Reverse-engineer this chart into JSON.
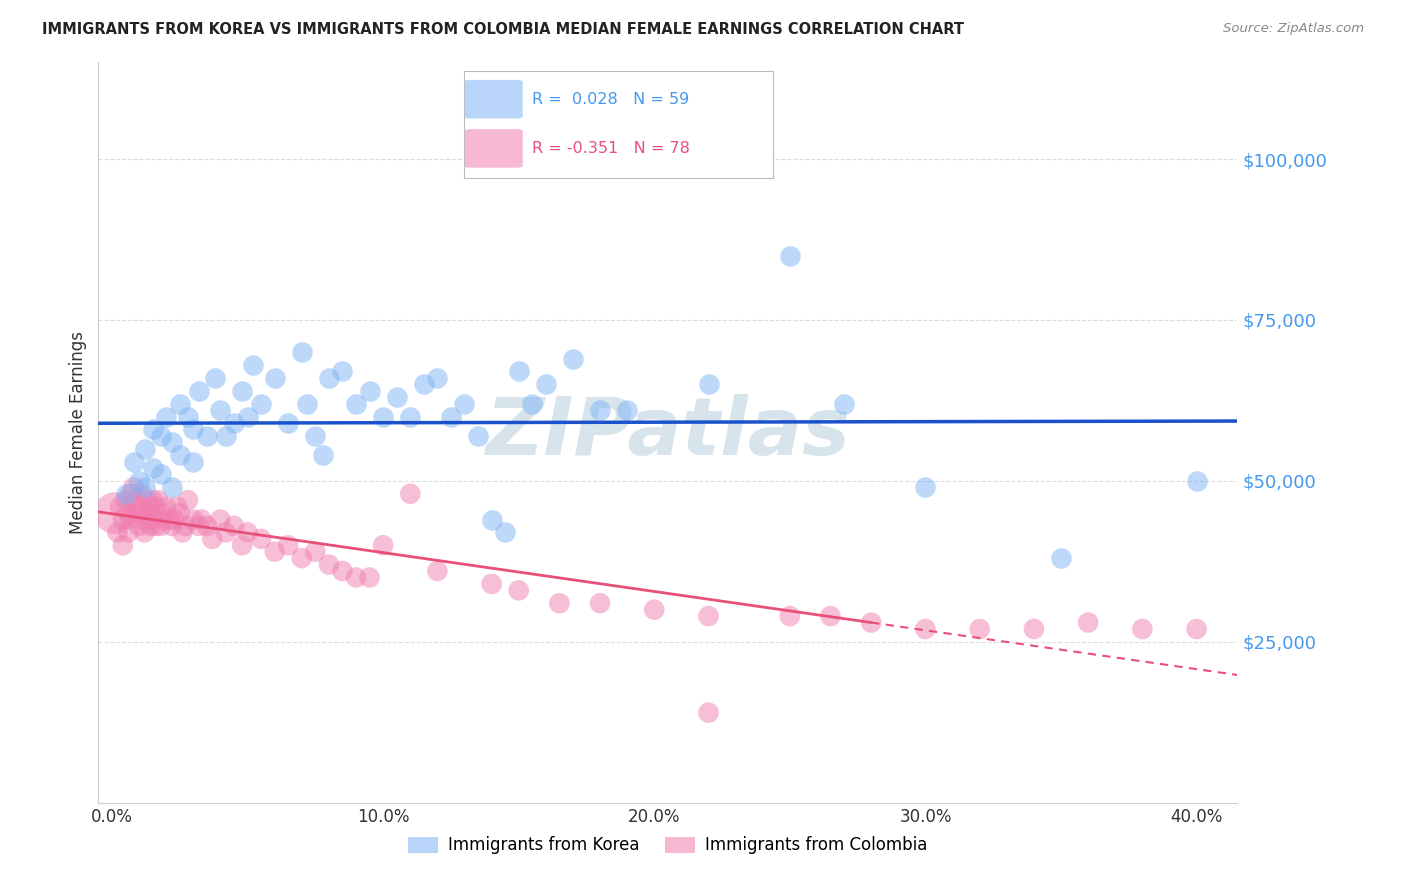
{
  "title": "IMMIGRANTS FROM KOREA VS IMMIGRANTS FROM COLOMBIA MEDIAN FEMALE EARNINGS CORRELATION CHART",
  "source": "Source: ZipAtlas.com",
  "ylabel": "Median Female Earnings",
  "xlabel_ticks": [
    "0.0%",
    "10.0%",
    "20.0%",
    "30.0%",
    "40.0%"
  ],
  "xlabel_vals": [
    0.0,
    0.1,
    0.2,
    0.3,
    0.4
  ],
  "ytick_labels": [
    "$25,000",
    "$50,000",
    "$75,000",
    "$100,000"
  ],
  "ytick_vals": [
    25000,
    50000,
    75000,
    100000
  ],
  "ylim": [
    0,
    115000
  ],
  "xlim": [
    -0.005,
    0.415
  ],
  "korea_color": "#7EB3F5",
  "colombia_color": "#F07EB0",
  "korea_R": 0.028,
  "korea_N": 59,
  "colombia_R": -0.351,
  "colombia_N": 78,
  "korea_line_color": "#1A52CC",
  "colombia_line_color": "#E8507A",
  "watermark": "ZIPatlas",
  "watermark_color": "#B8CEDE",
  "legend_label_korea": "Immigrants from Korea",
  "legend_label_colombia": "Immigrants from Colombia",
  "korea_scatter_x": [
    0.005,
    0.008,
    0.01,
    0.012,
    0.012,
    0.015,
    0.015,
    0.018,
    0.018,
    0.02,
    0.022,
    0.022,
    0.025,
    0.025,
    0.028,
    0.03,
    0.03,
    0.032,
    0.035,
    0.038,
    0.04,
    0.042,
    0.045,
    0.048,
    0.05,
    0.052,
    0.055,
    0.06,
    0.065,
    0.07,
    0.072,
    0.075,
    0.078,
    0.08,
    0.085,
    0.09,
    0.095,
    0.1,
    0.105,
    0.11,
    0.115,
    0.12,
    0.125,
    0.13,
    0.135,
    0.14,
    0.145,
    0.15,
    0.155,
    0.16,
    0.17,
    0.18,
    0.19,
    0.22,
    0.25,
    0.27,
    0.3,
    0.35,
    0.4
  ],
  "korea_scatter_y": [
    48000,
    53000,
    50000,
    55000,
    49000,
    58000,
    52000,
    57000,
    51000,
    60000,
    56000,
    49000,
    62000,
    54000,
    60000,
    58000,
    53000,
    64000,
    57000,
    66000,
    61000,
    57000,
    59000,
    64000,
    60000,
    68000,
    62000,
    66000,
    59000,
    70000,
    62000,
    57000,
    54000,
    66000,
    67000,
    62000,
    64000,
    60000,
    63000,
    60000,
    65000,
    66000,
    60000,
    62000,
    57000,
    44000,
    42000,
    67000,
    62000,
    65000,
    69000,
    61000,
    61000,
    65000,
    85000,
    62000,
    49000,
    38000,
    50000
  ],
  "colombia_scatter_x": [
    0.001,
    0.002,
    0.003,
    0.004,
    0.004,
    0.005,
    0.006,
    0.006,
    0.007,
    0.007,
    0.008,
    0.009,
    0.009,
    0.01,
    0.01,
    0.011,
    0.011,
    0.012,
    0.012,
    0.013,
    0.013,
    0.014,
    0.014,
    0.015,
    0.015,
    0.016,
    0.016,
    0.017,
    0.018,
    0.018,
    0.019,
    0.02,
    0.021,
    0.022,
    0.023,
    0.024,
    0.025,
    0.026,
    0.027,
    0.028,
    0.03,
    0.032,
    0.033,
    0.035,
    0.037,
    0.04,
    0.042,
    0.045,
    0.048,
    0.05,
    0.055,
    0.06,
    0.065,
    0.07,
    0.075,
    0.08,
    0.085,
    0.09,
    0.095,
    0.1,
    0.11,
    0.12,
    0.14,
    0.15,
    0.165,
    0.18,
    0.2,
    0.22,
    0.25,
    0.265,
    0.28,
    0.3,
    0.32,
    0.34,
    0.36,
    0.38,
    0.22,
    0.4
  ],
  "colombia_scatter_y": [
    45000,
    42000,
    46000,
    44000,
    40000,
    47000,
    45000,
    42000,
    48000,
    44000,
    49000,
    47000,
    45000,
    46000,
    43000,
    48000,
    45000,
    44000,
    42000,
    47000,
    45000,
    46000,
    43000,
    47000,
    44000,
    46000,
    43000,
    47000,
    45000,
    43000,
    44000,
    46000,
    44000,
    43000,
    44000,
    46000,
    45000,
    42000,
    43000,
    47000,
    44000,
    43000,
    44000,
    43000,
    41000,
    44000,
    42000,
    43000,
    40000,
    42000,
    41000,
    39000,
    40000,
    38000,
    39000,
    37000,
    36000,
    35000,
    35000,
    40000,
    48000,
    36000,
    34000,
    33000,
    31000,
    31000,
    30000,
    29000,
    29000,
    29000,
    28000,
    27000,
    27000,
    27000,
    28000,
    27000,
    14000,
    27000
  ],
  "colombia_large_indices": [
    0
  ],
  "colombia_large_size": 900,
  "scatter_size_small": 220
}
